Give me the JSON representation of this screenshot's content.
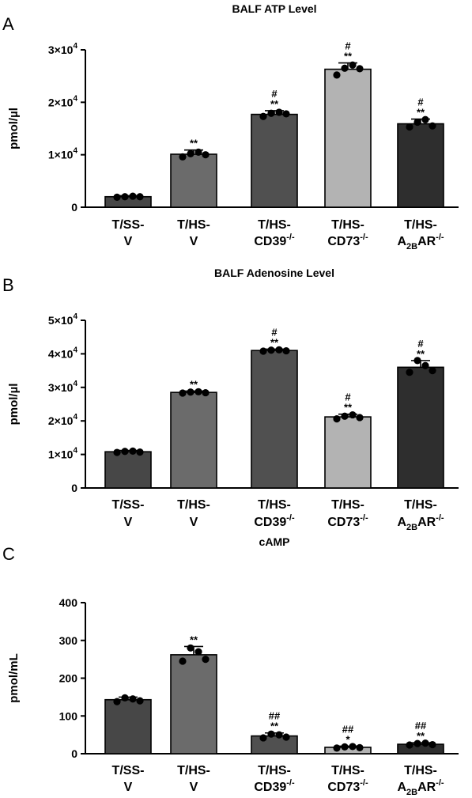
{
  "colors": [
    "#474747",
    "#6b6b6b",
    "#505050",
    "#b3b3b3",
    "#2e2e2e"
  ],
  "chart_data": [
    {
      "type": "bar",
      "panel": "A",
      "title": "BALF ATP Level",
      "ylabel": "pmol/µl",
      "ylim": [
        0,
        30000
      ],
      "yticks": [
        0,
        10000,
        20000,
        30000
      ],
      "ytick_labels": [
        "0",
        "1×10",
        "2×10",
        "3×10"
      ],
      "ytick_exp": [
        "",
        "4",
        "4",
        "4"
      ],
      "categories": [
        {
          "line1": "T/SS-",
          "line2": "V",
          "sup": "",
          "sub": "",
          "tail": ""
        },
        {
          "line1": "T/HS-",
          "line2": "V",
          "sup": "",
          "sub": "",
          "tail": ""
        },
        {
          "line1": "T/HS-",
          "line2": "CD39",
          "sup": "-/-",
          "sub": "",
          "tail": ""
        },
        {
          "line1": "T/HS-",
          "line2": "CD73",
          "sup": "-/-",
          "sub": "",
          "tail": ""
        },
        {
          "line1": "T/HS-",
          "line2": "A",
          "sub": "2B",
          "tail": "AR",
          "sup": "-/-"
        }
      ],
      "values": [
        2000,
        10100,
        17700,
        26300,
        15900
      ],
      "errors": [
        200,
        800,
        700,
        1200,
        900
      ],
      "points": [
        [
          1900,
          2000,
          2100,
          2000
        ],
        [
          9600,
          10200,
          10500,
          10000
        ],
        [
          17300,
          17900,
          18100,
          17800
        ],
        [
          25200,
          26500,
          27100,
          26400
        ],
        [
          15300,
          16200,
          16700,
          15500
        ]
      ],
      "sig_top": [
        "",
        "",
        "#",
        "#",
        "#"
      ],
      "sig_bottom": [
        "",
        "**",
        "**",
        "**",
        "**"
      ]
    },
    {
      "type": "bar",
      "panel": "B",
      "title": "BALF Adenosine Level",
      "ylabel": "pmol/µl",
      "ylim": [
        0,
        50000
      ],
      "yticks": [
        0,
        10000,
        20000,
        30000,
        40000,
        50000
      ],
      "ytick_labels": [
        "0",
        "1×10",
        "2×10",
        "3×10",
        "4×10",
        "5×10"
      ],
      "ytick_exp": [
        "",
        "4",
        "4",
        "4",
        "4",
        "4"
      ],
      "categories": [
        {
          "line1": "T/SS-",
          "line2": "V",
          "sup": "",
          "sub": "",
          "tail": ""
        },
        {
          "line1": "T/HS-",
          "line2": "V",
          "sup": "",
          "sub": "",
          "tail": ""
        },
        {
          "line1": "T/HS-",
          "line2": "CD39",
          "sup": "-/-",
          "sub": "",
          "tail": ""
        },
        {
          "line1": "T/HS-",
          "line2": "CD73",
          "sup": "-/-",
          "sub": "",
          "tail": ""
        },
        {
          "line1": "T/HS-",
          "line2": "A",
          "sub": "2B",
          "tail": "AR",
          "sup": "-/-"
        }
      ],
      "values": [
        10800,
        28500,
        41000,
        21200,
        36000
      ],
      "errors": [
        400,
        400,
        400,
        800,
        2000
      ],
      "points": [
        [
          10600,
          10900,
          11000,
          10700
        ],
        [
          28300,
          28600,
          28700,
          28400
        ],
        [
          40800,
          41100,
          41200,
          40900
        ],
        [
          20600,
          21400,
          21800,
          21000
        ],
        [
          34500,
          38000,
          36500,
          35000
        ]
      ],
      "sig_top": [
        "",
        "",
        "#",
        "#",
        "#"
      ],
      "sig_bottom": [
        "",
        "**",
        "**",
        "**",
        "**"
      ]
    },
    {
      "type": "bar",
      "panel": "C",
      "title": "cAMP",
      "ylabel": "pmol/mL",
      "ylim": [
        0,
        400
      ],
      "yticks": [
        0,
        100,
        200,
        300,
        400
      ],
      "ytick_labels": [
        "0",
        "100",
        "200",
        "300",
        "400"
      ],
      "ytick_exp": [
        "",
        "",
        "",
        "",
        ""
      ],
      "categories": [
        {
          "line1": "T/SS-",
          "line2": "V",
          "sup": "",
          "sub": "",
          "tail": ""
        },
        {
          "line1": "T/HS-",
          "line2": "V",
          "sup": "",
          "sub": "",
          "tail": ""
        },
        {
          "line1": "T/HS-",
          "line2": "CD39",
          "sup": "-/-",
          "sub": "",
          "tail": ""
        },
        {
          "line1": "T/HS-",
          "line2": "CD73",
          "sup": "-/-",
          "sub": "",
          "tail": ""
        },
        {
          "line1": "T/HS-",
          "line2": "A",
          "sub": "2B",
          "tail": "AR",
          "sup": "-/-"
        }
      ],
      "values": [
        143,
        262,
        47,
        17,
        25
      ],
      "errors": [
        7,
        22,
        8,
        3,
        4
      ],
      "points": [
        [
          138,
          148,
          145,
          140
        ],
        [
          245,
          280,
          270,
          250
        ],
        [
          42,
          52,
          50,
          44
        ],
        [
          15,
          18,
          19,
          16
        ],
        [
          23,
          27,
          28,
          24
        ]
      ],
      "sig_top": [
        "",
        "",
        "##",
        "##",
        "##"
      ],
      "sig_bottom": [
        "",
        "**",
        "**",
        "*",
        "**"
      ]
    }
  ]
}
